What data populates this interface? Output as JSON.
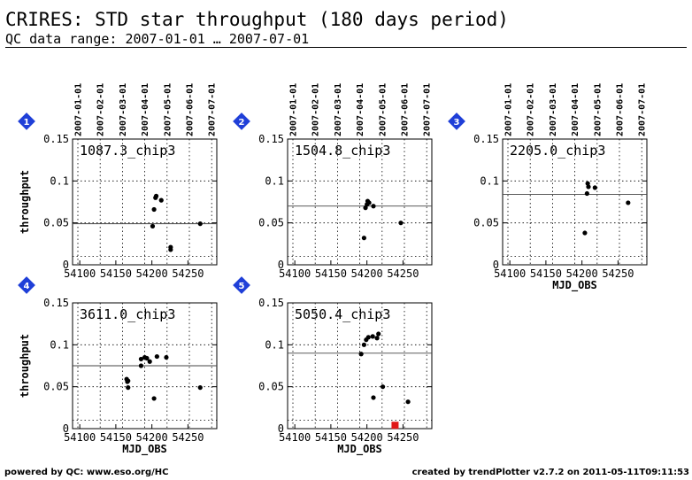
{
  "header": {
    "title": "CRIRES: STD star throughput (180 days period)",
    "subtitle": "QC data range: 2007-01-01 … 2007-07-01"
  },
  "footer": {
    "left": "powered by QC: www.eso.org/HC",
    "right": "created by trendPlotter v2.7.2 on 2011-05-11T09:11:53"
  },
  "colors": {
    "badge": "#1f3fd8",
    "highlight": "#e01818",
    "points": "#000000",
    "grid": "#000000"
  },
  "chart_data": [
    {
      "type": "scatter",
      "badge": "1",
      "panel_label": "1087.3_chip3",
      "ylabel": "throughput",
      "xlabel": "",
      "xlim": [
        54090,
        54290
      ],
      "ylim": [
        0,
        0.15
      ],
      "reference_line": 0.049,
      "x_ticks": [
        54100,
        54150,
        54200,
        54250
      ],
      "y_ticks": [
        0,
        0.05,
        0.1,
        0.15
      ],
      "show_x_ticklabels": true,
      "show_y_ticklabels": true,
      "date_ticks": [
        "2007-01-01",
        "2007-02-01",
        "2007-03-01",
        "2007-04-01",
        "2007-05-01",
        "2007-06-01",
        "2007-07-01"
      ],
      "points": [
        {
          "x": 54201,
          "y": 0.046
        },
        {
          "x": 54203,
          "y": 0.066
        },
        {
          "x": 54205,
          "y": 0.08
        },
        {
          "x": 54206,
          "y": 0.082
        },
        {
          "x": 54213,
          "y": 0.077
        },
        {
          "x": 54226,
          "y": 0.021
        },
        {
          "x": 54226,
          "y": 0.018
        },
        {
          "x": 54267,
          "y": 0.049
        }
      ]
    },
    {
      "type": "scatter",
      "badge": "2",
      "panel_label": "1504.8_chip3",
      "ylabel": "",
      "xlabel": "",
      "xlim": [
        54090,
        54290
      ],
      "ylim": [
        0,
        0.15
      ],
      "reference_line": 0.07,
      "x_ticks": [
        54100,
        54150,
        54200,
        54250
      ],
      "y_ticks": [
        0,
        0.05,
        0.1,
        0.15
      ],
      "show_x_ticklabels": true,
      "show_y_ticklabels": true,
      "date_ticks": [
        "2007-01-01",
        "2007-02-01",
        "2007-03-01",
        "2007-04-01",
        "2007-05-01",
        "2007-06-01",
        "2007-07-01"
      ],
      "points": [
        {
          "x": 54196,
          "y": 0.032
        },
        {
          "x": 54198,
          "y": 0.068
        },
        {
          "x": 54200,
          "y": 0.072
        },
        {
          "x": 54201,
          "y": 0.076
        },
        {
          "x": 54203,
          "y": 0.074
        },
        {
          "x": 54209,
          "y": 0.07
        },
        {
          "x": 54247,
          "y": 0.05
        }
      ]
    },
    {
      "type": "scatter",
      "badge": "3",
      "panel_label": "2205.0_chip3",
      "ylabel": "",
      "xlabel": "MJD_OBS",
      "xlim": [
        54090,
        54290
      ],
      "ylim": [
        0,
        0.15
      ],
      "reference_line": 0.084,
      "x_ticks": [
        54100,
        54150,
        54200,
        54250
      ],
      "y_ticks": [
        0,
        0.05,
        0.1,
        0.15
      ],
      "show_x_ticklabels": true,
      "show_y_ticklabels": true,
      "date_ticks": [
        "2007-01-01",
        "2007-02-01",
        "2007-03-01",
        "2007-04-01",
        "2007-05-01",
        "2007-06-01",
        "2007-07-01"
      ],
      "points": [
        {
          "x": 54204,
          "y": 0.038
        },
        {
          "x": 54207,
          "y": 0.085
        },
        {
          "x": 54208,
          "y": 0.097
        },
        {
          "x": 54209,
          "y": 0.093
        },
        {
          "x": 54218,
          "y": 0.092
        },
        {
          "x": 54264,
          "y": 0.074
        }
      ]
    },
    {
      "type": "scatter",
      "badge": "4",
      "panel_label": "3611.0_chip3",
      "ylabel": "throughput",
      "xlabel": "MJD_OBS",
      "xlim": [
        54090,
        54290
      ],
      "ylim": [
        0,
        0.15
      ],
      "reference_line": 0.075,
      "x_ticks": [
        54100,
        54150,
        54200,
        54250
      ],
      "y_ticks": [
        0,
        0.05,
        0.1,
        0.15
      ],
      "show_x_ticklabels": true,
      "show_y_ticklabels": true,
      "date_ticks": [],
      "points": [
        {
          "x": 54165,
          "y": 0.059
        },
        {
          "x": 54166,
          "y": 0.056
        },
        {
          "x": 54167,
          "y": 0.049
        },
        {
          "x": 54167,
          "y": 0.057
        },
        {
          "x": 54185,
          "y": 0.083
        },
        {
          "x": 54185,
          "y": 0.075
        },
        {
          "x": 54190,
          "y": 0.085
        },
        {
          "x": 54193,
          "y": 0.084
        },
        {
          "x": 54197,
          "y": 0.08
        },
        {
          "x": 54203,
          "y": 0.036
        },
        {
          "x": 54207,
          "y": 0.086
        },
        {
          "x": 54220,
          "y": 0.085
        },
        {
          "x": 54267,
          "y": 0.049
        }
      ]
    },
    {
      "type": "scatter",
      "badge": "5",
      "panel_label": "5050.4_chip3",
      "ylabel": "",
      "xlabel": "MJD_OBS",
      "xlim": [
        54090,
        54290
      ],
      "ylim": [
        0,
        0.15
      ],
      "reference_line": 0.09,
      "x_ticks": [
        54100,
        54150,
        54200,
        54250
      ],
      "y_ticks": [
        0,
        0.05,
        0.1,
        0.15
      ],
      "show_x_ticklabels": true,
      "show_y_ticklabels": true,
      "date_ticks": [],
      "points": [
        {
          "x": 54192,
          "y": 0.089
        },
        {
          "x": 54196,
          "y": 0.1
        },
        {
          "x": 54199,
          "y": 0.106
        },
        {
          "x": 54202,
          "y": 0.109
        },
        {
          "x": 54208,
          "y": 0.11
        },
        {
          "x": 54209,
          "y": 0.037
        },
        {
          "x": 54214,
          "y": 0.108
        },
        {
          "x": 54216,
          "y": 0.113
        },
        {
          "x": 54222,
          "y": 0.05
        },
        {
          "x": 54257,
          "y": 0.032
        }
      ],
      "highlight_points": [
        {
          "x": 54239,
          "y": 0.004
        }
      ]
    }
  ]
}
